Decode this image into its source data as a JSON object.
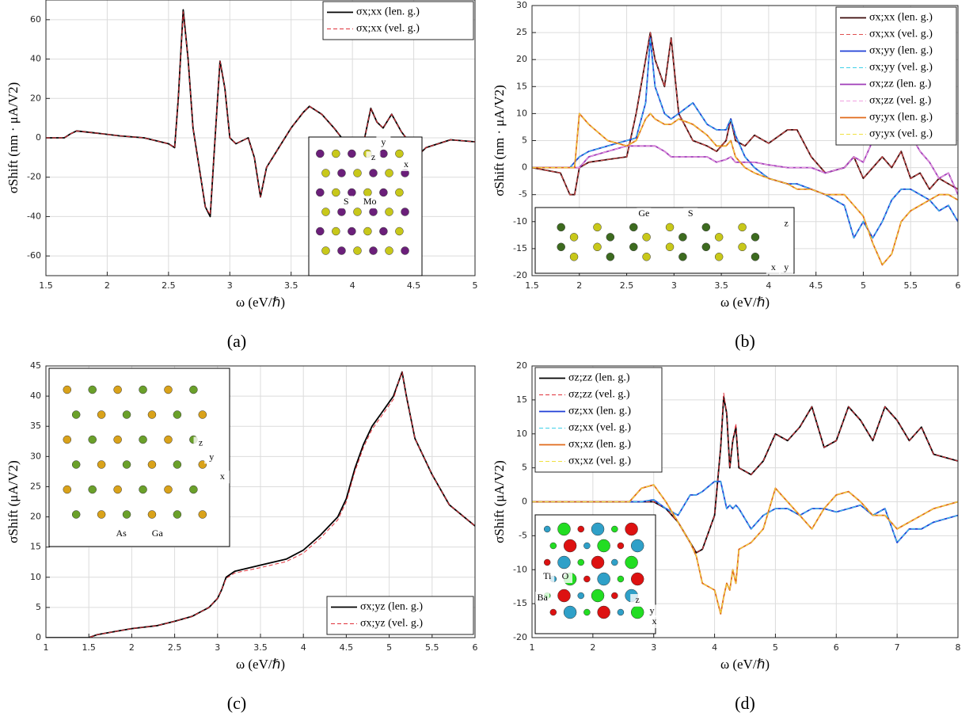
{
  "chart_data": [
    {
      "type": "line",
      "caption": "(a)",
      "xlabel": "ω (eV/ℏ)",
      "ylabel": "σShift (nm · μA/V2)",
      "xlim": [
        1.5,
        5
      ],
      "ylim": [
        -70,
        70
      ],
      "xticks": [
        1.5,
        2,
        2.5,
        3,
        3.5,
        4,
        4.5,
        5
      ],
      "yticks": [
        -60,
        -40,
        -20,
        0,
        20,
        40,
        60
      ],
      "grid": true,
      "legend": "upper right",
      "inset_labels": [
        "S",
        "Mo",
        "x",
        "y",
        "z"
      ],
      "x": [
        1.5,
        1.65,
        1.7,
        1.75,
        1.9,
        2.1,
        2.3,
        2.5,
        2.55,
        2.58,
        2.62,
        2.66,
        2.7,
        2.75,
        2.8,
        2.84,
        2.88,
        2.92,
        2.96,
        3.0,
        3.05,
        3.15,
        3.2,
        3.25,
        3.3,
        3.4,
        3.5,
        3.6,
        3.65,
        3.75,
        3.85,
        3.95,
        4.05,
        4.1,
        4.15,
        4.2,
        4.25,
        4.32,
        4.4,
        4.5,
        4.55,
        4.6,
        4.8,
        5.0
      ],
      "series": [
        {
          "name": "σx;xx (len. g.)",
          "color": "#000000",
          "style": "solid",
          "values": [
            0,
            0,
            2,
            3.5,
            2.5,
            1,
            0,
            -3,
            -5,
            20,
            65,
            40,
            5,
            -15,
            -35,
            -40,
            0,
            39,
            25,
            0,
            -3,
            0,
            -10,
            -30,
            -15,
            -5,
            5,
            13,
            16,
            12,
            5,
            -3,
            -5,
            0,
            15,
            8,
            5,
            12,
            3,
            -5,
            -8,
            -5,
            -1,
            -2
          ]
        },
        {
          "name": "σx;xx (vel. g.)",
          "color": "#e0313a",
          "style": "dashed",
          "values": [
            0,
            0,
            2,
            3.5,
            2.5,
            1,
            0,
            -3,
            -5,
            20,
            64,
            40,
            5,
            -15,
            -35,
            -39,
            0,
            39,
            25,
            0,
            -3,
            0,
            -10,
            -30,
            -15,
            -5,
            5,
            13,
            16,
            12,
            5,
            -3,
            -5,
            0,
            15,
            8,
            5,
            12,
            3,
            -5,
            -8,
            -5,
            -1,
            -2
          ]
        }
      ]
    },
    {
      "type": "line",
      "caption": "(b)",
      "xlabel": "ω (eV/ℏ)",
      "ylabel": "σShift (nm · μA/V2)",
      "xlim": [
        1.5,
        6
      ],
      "ylim": [
        -20,
        30
      ],
      "xticks": [
        1.5,
        2,
        2.5,
        3,
        3.5,
        4,
        4.5,
        5,
        5.5,
        6
      ],
      "yticks": [
        -20,
        -15,
        -10,
        -5,
        0,
        5,
        10,
        15,
        20,
        25,
        30
      ],
      "grid": true,
      "legend": "upper right",
      "inset_labels": [
        "Ge",
        "S",
        "x",
        "y",
        "z"
      ],
      "x": [
        1.5,
        1.8,
        1.9,
        1.95,
        2.0,
        2.1,
        2.3,
        2.5,
        2.6,
        2.7,
        2.75,
        2.8,
        2.9,
        2.97,
        3.05,
        3.2,
        3.35,
        3.45,
        3.55,
        3.6,
        3.65,
        3.75,
        3.85,
        4.0,
        4.2,
        4.3,
        4.45,
        4.6,
        4.8,
        4.9,
        5.0,
        5.1,
        5.2,
        5.3,
        5.4,
        5.5,
        5.6,
        5.7,
        5.8,
        5.9,
        6.0
      ],
      "series": [
        {
          "name": "σx;xx (len. g.)",
          "color": "#3b0a0a",
          "style": "solid",
          "values": [
            0,
            -1,
            -5,
            -5,
            0,
            1,
            1.5,
            2,
            10,
            20,
            25,
            20,
            15,
            24,
            10,
            5,
            4,
            3,
            5,
            9,
            5,
            4,
            6,
            4.5,
            7,
            7,
            2,
            -1,
            0,
            2,
            -2,
            0,
            2,
            0,
            3,
            -2,
            -1,
            -4,
            -2,
            -3,
            -4
          ]
        },
        {
          "name": "σx;xx (vel. g.)",
          "color": "#e05050",
          "style": "dashed",
          "values": [
            0,
            -1,
            -5,
            -5,
            0,
            1,
            1.5,
            2,
            10,
            20,
            25,
            20,
            15,
            24,
            10,
            5,
            4,
            3,
            5,
            9,
            5,
            4,
            6,
            4.5,
            7,
            7,
            2,
            -1,
            0,
            2,
            -2,
            0,
            2,
            0,
            3,
            -2,
            -1,
            -4,
            -2,
            -3,
            -4
          ]
        },
        {
          "name": "σx;yy (len. g.)",
          "color": "#1f3fd6",
          "style": "solid",
          "values": [
            0,
            0,
            0,
            1,
            2,
            3,
            4,
            5,
            5.5,
            12,
            24,
            15,
            10,
            9,
            10,
            12,
            8,
            7,
            7,
            9,
            6,
            2,
            0,
            -2,
            -3,
            -3,
            -4,
            -5,
            -7,
            -13,
            -10,
            -13,
            -10,
            -6,
            -4,
            -4,
            -5,
            -6,
            -8,
            -7,
            -10
          ]
        },
        {
          "name": "σx;yy (vel. g.)",
          "color": "#3fd0e8",
          "style": "dashed",
          "values": [
            0,
            0,
            0,
            1,
            2,
            3,
            4,
            5,
            5.5,
            12,
            24,
            15,
            10,
            9,
            10,
            12,
            8,
            7,
            7,
            9,
            6,
            2,
            0,
            -2,
            -3,
            -3,
            -4,
            -5,
            -7,
            -13,
            -10,
            -13,
            -10,
            -6,
            -4,
            -4,
            -5,
            -6,
            -8,
            -7,
            -10
          ]
        },
        {
          "name": "σx;zz (len. g.)",
          "color": "#9f3cb9",
          "style": "solid",
          "values": [
            0,
            0,
            0,
            0,
            0,
            2,
            3,
            4,
            4,
            4,
            4,
            4,
            3,
            2,
            2,
            2,
            2,
            1,
            1.5,
            2,
            1,
            1,
            1,
            0.5,
            0,
            0,
            0,
            -1,
            0,
            2,
            1,
            5,
            7,
            5,
            6,
            6,
            3,
            1,
            -2,
            -1,
            -5
          ]
        },
        {
          "name": "σx;zz (vel. g.)",
          "color": "#f0a0e0",
          "style": "dashed",
          "values": [
            0,
            0,
            0,
            0,
            0,
            2,
            3,
            4,
            4,
            4,
            4,
            4,
            3,
            2,
            2,
            2,
            2,
            1,
            1.5,
            2,
            1,
            1,
            1,
            0.5,
            0,
            0,
            0,
            -1,
            0,
            2,
            1,
            5,
            7,
            5,
            6,
            6,
            3,
            1,
            -2,
            -1,
            -5
          ]
        },
        {
          "name": "σy;yx (len. g.)",
          "color": "#e06a1a",
          "style": "solid",
          "values": [
            0,
            0,
            0,
            0,
            10,
            8,
            5,
            4,
            5,
            9,
            10,
            9,
            8,
            8,
            9,
            8,
            6,
            4,
            4,
            5,
            2,
            0,
            -1,
            -2,
            -3,
            -4,
            -4,
            -5,
            -5,
            -7,
            -9,
            -14,
            -18,
            -16,
            -10,
            -8,
            -7,
            -6,
            -5,
            -5,
            -6
          ]
        },
        {
          "name": "σy;yx (vel. g.)",
          "color": "#f0e040",
          "style": "dashed",
          "values": [
            0,
            0,
            0,
            0,
            10,
            8,
            5,
            4,
            5,
            9,
            10,
            9,
            8,
            8,
            9,
            8,
            6,
            4,
            4,
            5,
            2,
            0,
            -1,
            -2,
            -3,
            -4,
            -4,
            -5,
            -5,
            -7,
            -9,
            -14,
            -18,
            -16,
            -10,
            -8,
            -7,
            -6,
            -5,
            -5,
            -6
          ]
        }
      ]
    },
    {
      "type": "line",
      "caption": "(c)",
      "xlabel": "ω (eV/ℏ)",
      "ylabel": "σShift (μA/V2)",
      "xlim": [
        1,
        6
      ],
      "ylim": [
        0,
        45
      ],
      "xticks": [
        1,
        1.5,
        2,
        2.5,
        3,
        3.5,
        4,
        4.5,
        5,
        5.5,
        6
      ],
      "yticks": [
        0,
        5,
        10,
        15,
        20,
        25,
        30,
        35,
        40,
        45
      ],
      "grid": true,
      "legend": "lower right",
      "inset_labels": [
        "As",
        "Ga",
        "x",
        "y",
        "z"
      ],
      "x": [
        1,
        1.5,
        1.6,
        1.8,
        2,
        2.3,
        2.5,
        2.7,
        2.9,
        3.0,
        3.05,
        3.1,
        3.2,
        3.5,
        3.8,
        4.0,
        4.2,
        4.4,
        4.5,
        4.6,
        4.7,
        4.8,
        4.9,
        5.0,
        5.05,
        5.1,
        5.15,
        5.2,
        5.3,
        5.5,
        5.7,
        6.0
      ],
      "series": [
        {
          "name": "σx;yz (len. g.)",
          "color": "#000000",
          "style": "solid",
          "values": [
            0,
            0,
            0.5,
            1,
            1.5,
            2,
            2.7,
            3.5,
            5,
            6.5,
            8,
            10,
            11,
            12,
            13,
            14.5,
            17,
            20,
            23,
            28,
            32,
            35,
            37,
            39,
            40,
            42,
            44,
            40,
            33,
            27,
            22,
            18.5
          ]
        },
        {
          "name": "σx;yz (vel. g.)",
          "color": "#e0313a",
          "style": "dashed",
          "values": [
            0,
            0,
            0.5,
            1,
            1.5,
            2,
            2.7,
            3.5,
            5,
            6.5,
            8,
            9.8,
            10.7,
            11.6,
            12.6,
            14,
            16.5,
            19.5,
            22.5,
            27.5,
            31.5,
            34.5,
            36.5,
            38.5,
            39.5,
            42,
            44,
            40,
            33,
            27,
            22,
            18.5
          ]
        }
      ]
    },
    {
      "type": "line",
      "caption": "(d)",
      "xlabel": "ω (eV/ℏ)",
      "ylabel": "σShift (μA/V2)",
      "xlim": [
        1,
        8
      ],
      "ylim": [
        -20,
        20
      ],
      "xticks": [
        1,
        2,
        3,
        4,
        5,
        6,
        7,
        8
      ],
      "yticks": [
        -20,
        -15,
        -10,
        -5,
        0,
        5,
        10,
        15,
        20
      ],
      "grid": true,
      "legend": "upper left",
      "inset_labels": [
        "Ti",
        "O",
        "Ba",
        "x",
        "y",
        "z"
      ],
      "x": [
        1,
        2,
        2.2,
        2.6,
        2.8,
        3,
        3.2,
        3.4,
        3.6,
        3.7,
        3.8,
        4.0,
        4.1,
        4.15,
        4.2,
        4.25,
        4.3,
        4.35,
        4.4,
        4.6,
        4.8,
        5,
        5.2,
        5.4,
        5.6,
        5.8,
        6,
        6.2,
        6.4,
        6.6,
        6.8,
        7,
        7.2,
        7.4,
        7.6,
        8
      ],
      "series": [
        {
          "name": "σz;zz (len. g.)",
          "color": "#000000",
          "style": "solid",
          "values": [
            0,
            0,
            0,
            0,
            0,
            0,
            -1,
            -3,
            -6,
            -7.5,
            -7,
            -2,
            8,
            15.5,
            13,
            5,
            9,
            11,
            5,
            4,
            6,
            10,
            9,
            11,
            14,
            8,
            9,
            14,
            12,
            9,
            14,
            12,
            9,
            11,
            7,
            6
          ]
        },
        {
          "name": "σz;zz (vel. g.)",
          "color": "#e0313a",
          "style": "dashed",
          "values": [
            0,
            0,
            0,
            0,
            0,
            0,
            -1,
            -3,
            -6,
            -7.5,
            -7,
            -2,
            8,
            16,
            13,
            5,
            9,
            11.5,
            5,
            4,
            6,
            10,
            9,
            11,
            14,
            8,
            9,
            14,
            12,
            9,
            14,
            12,
            9,
            11,
            7,
            6
          ]
        },
        {
          "name": "σz;xx (len. g.)",
          "color": "#1f3fd6",
          "style": "solid",
          "values": [
            0,
            0,
            0,
            0,
            0,
            0.3,
            -1,
            -2,
            1,
            1,
            1.5,
            3,
            3,
            1,
            -1,
            -0.5,
            -1,
            -0.5,
            -1,
            -4,
            -2,
            -1,
            -1,
            -2,
            -1,
            -1,
            -1.5,
            -1,
            -0.5,
            -2,
            -1,
            -6,
            -4,
            -4,
            -3,
            -2
          ]
        },
        {
          "name": "σz;xx (vel. g.)",
          "color": "#3fd0e8",
          "style": "dashed",
          "values": [
            0,
            0,
            0,
            0,
            0,
            0.3,
            -1,
            -2,
            1,
            1,
            1.5,
            3,
            3,
            1,
            -1,
            -0.5,
            -1,
            -0.5,
            -1,
            -4,
            -2,
            -1,
            -1,
            -2,
            -1,
            -1,
            -1.5,
            -1,
            -0.5,
            -2,
            -1,
            -6,
            -4,
            -4,
            -3,
            -2
          ]
        },
        {
          "name": "σx;xz (len. g.)",
          "color": "#e06a1a",
          "style": "solid",
          "values": [
            0,
            0,
            0,
            0,
            2,
            2.5,
            0,
            -3,
            -6,
            -8,
            -12,
            -13,
            -16.5,
            -14,
            -12,
            -13,
            -10,
            -12,
            -7,
            -6,
            -4,
            2,
            0,
            -2,
            -4,
            -1,
            1,
            1.5,
            0,
            -2,
            -2,
            -4,
            -3,
            -2,
            -1,
            0
          ]
        },
        {
          "name": "σx;xz (vel. g.)",
          "color": "#f0e040",
          "style": "dashed",
          "values": [
            0,
            0,
            0,
            0,
            2,
            2.5,
            0,
            -3,
            -6,
            -8,
            -12,
            -13,
            -16.5,
            -14,
            -12,
            -13,
            -10,
            -12,
            -7,
            -6,
            -4,
            2,
            0,
            -2,
            -4,
            -1,
            1,
            1.5,
            0,
            -2,
            -2,
            -4,
            -3,
            -2,
            -1,
            0
          ]
        }
      ]
    }
  ]
}
